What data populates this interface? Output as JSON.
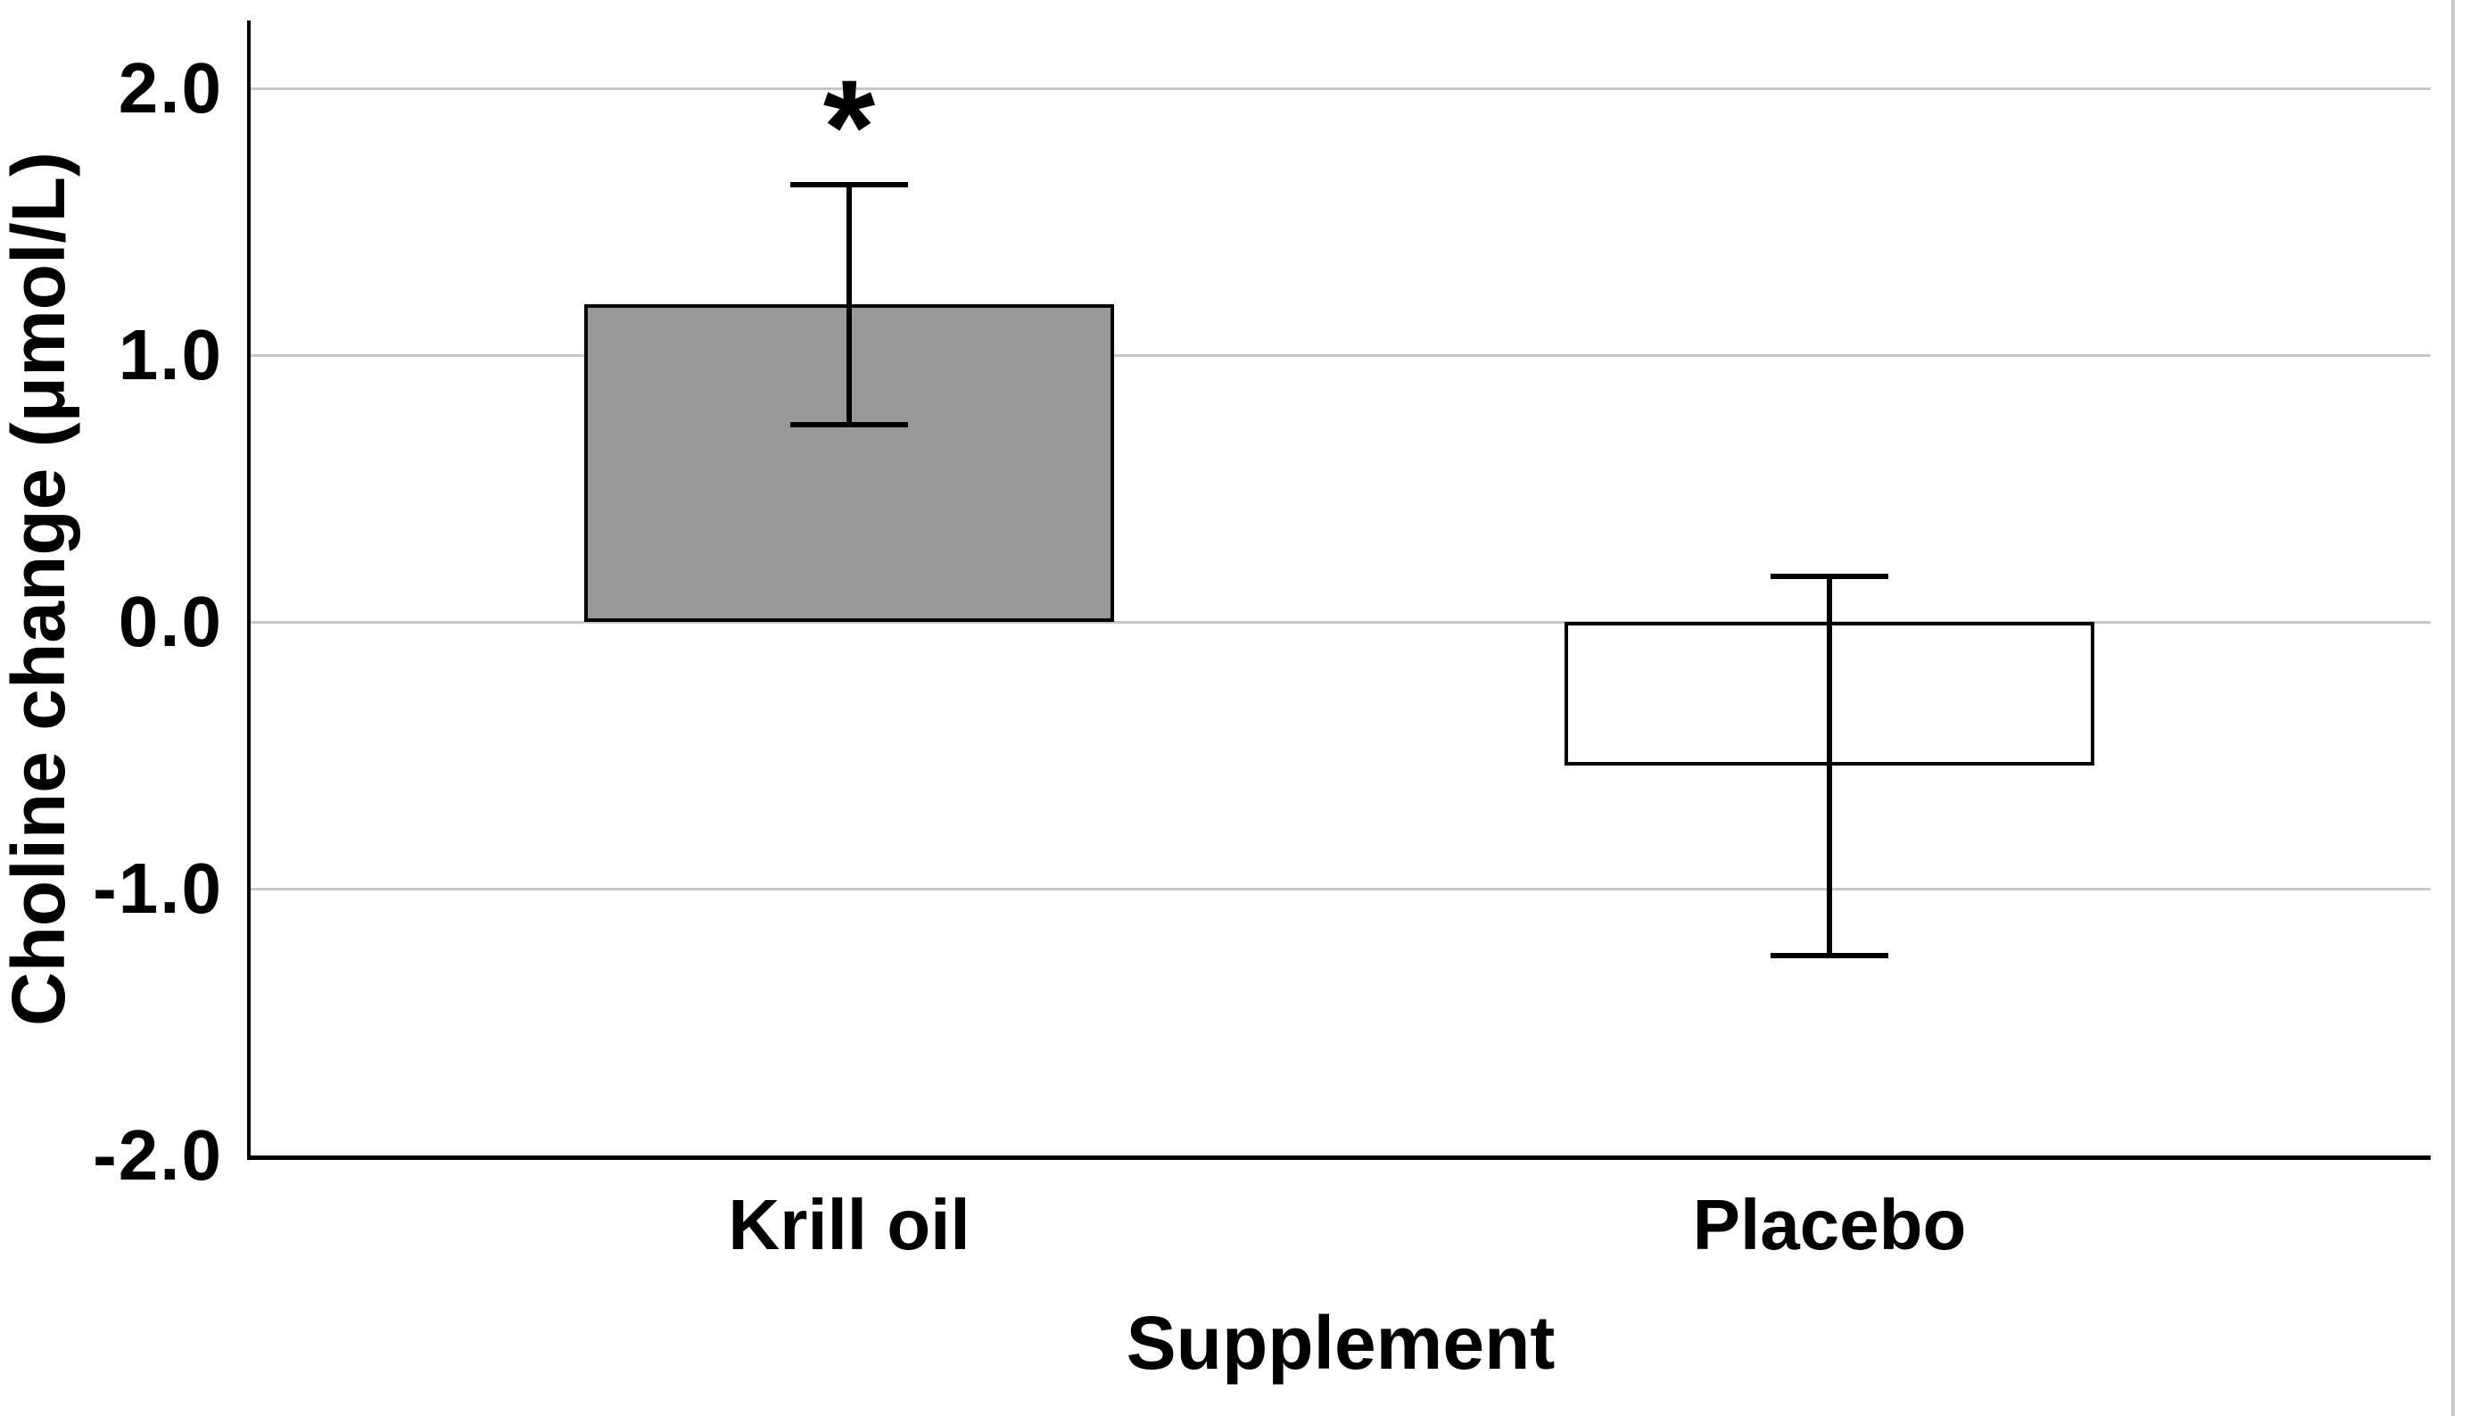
{
  "chart_data": {
    "type": "bar",
    "title": "",
    "xlabel": "Supplement",
    "ylabel": "Choline change (μmol/L)",
    "categories": [
      "Krill oil",
      "Placebo"
    ],
    "values": [
      1.19,
      -0.54
    ],
    "error_bars": {
      "upper": [
        1.64,
        0.17
      ],
      "lower": [
        0.74,
        -1.25
      ]
    },
    "annotations": [
      {
        "category_index": 0,
        "text": "*"
      }
    ],
    "yticks": [
      2.0,
      1.0,
      0.0,
      -1.0,
      -2.0
    ],
    "ytick_labels": [
      "2.0",
      "1.0",
      "0.0",
      "-1.0",
      "-2.0"
    ],
    "ylim": [
      -2.0,
      2.25
    ],
    "grid": true,
    "legend": "none",
    "bar_colors": [
      "#999999",
      "#ffffff"
    ],
    "bar_border_color": "#000000",
    "gridline_color": "#c6c6c6",
    "axis_color": "#000000"
  }
}
